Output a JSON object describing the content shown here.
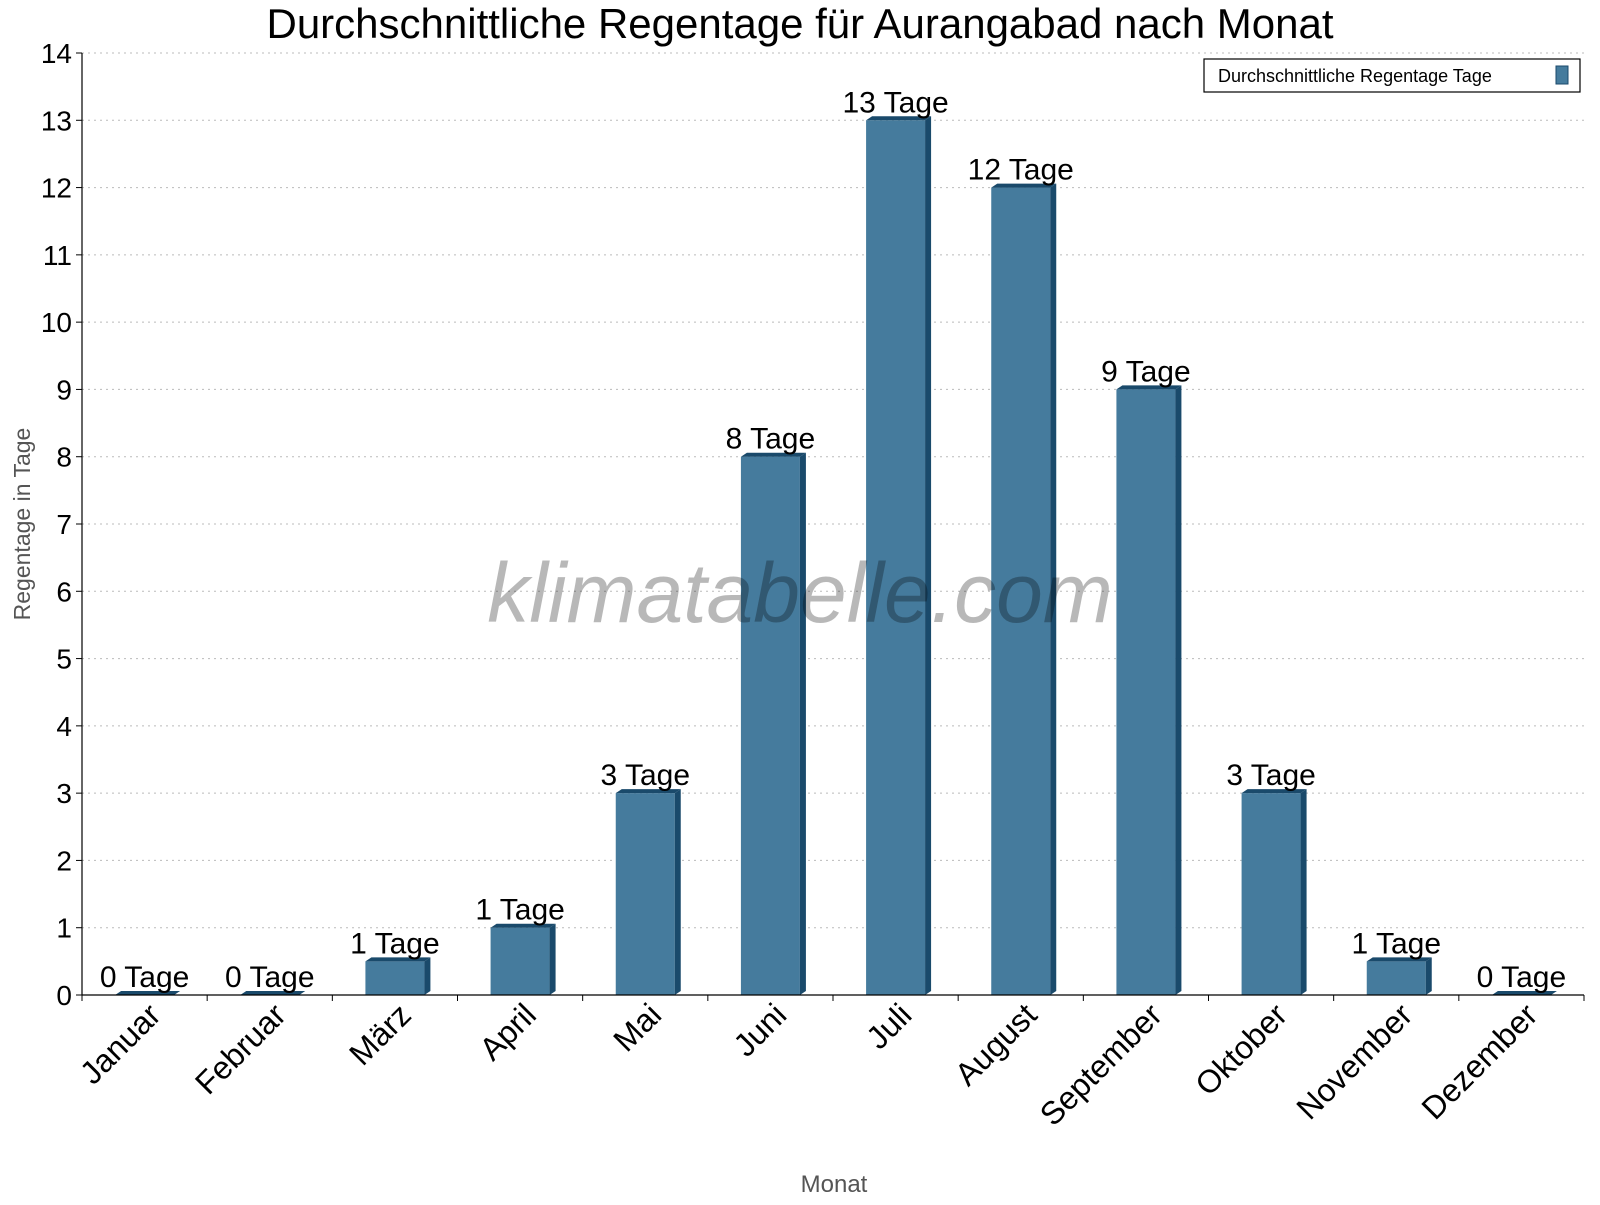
{
  "chart_data": {
    "type": "bar",
    "title": "Durchschnittliche Regentage für Aurangabad nach Monat",
    "xlabel": "Monat",
    "ylabel": "Regentage in Tage",
    "ylim": [
      0,
      14
    ],
    "yticks": [
      0,
      1,
      2,
      3,
      4,
      5,
      6,
      7,
      8,
      9,
      10,
      11,
      12,
      13,
      14
    ],
    "grid": true,
    "legend_placement": "top-right",
    "categories": [
      "Januar",
      "Februar",
      "März",
      "April",
      "Mai",
      "Juni",
      "Juli",
      "August",
      "September",
      "Oktober",
      "November",
      "Dezember"
    ],
    "series": [
      {
        "name": "Durchschnittliche Regentage Tage",
        "values": [
          0,
          0,
          0.5,
          1,
          3,
          8,
          13,
          12,
          9,
          3,
          0.5,
          0
        ],
        "data_labels": [
          "0 Tage",
          "0 Tage",
          "1 Tage",
          "1 Tage",
          "3 Tage",
          "8 Tage",
          "13 Tage",
          "12 Tage",
          "9 Tage",
          "3 Tage",
          "1 Tage",
          "0 Tage"
        ],
        "color": "#457b9d",
        "shade_color": "#1a4a6b"
      }
    ],
    "watermark": "klimatabelle.com"
  }
}
